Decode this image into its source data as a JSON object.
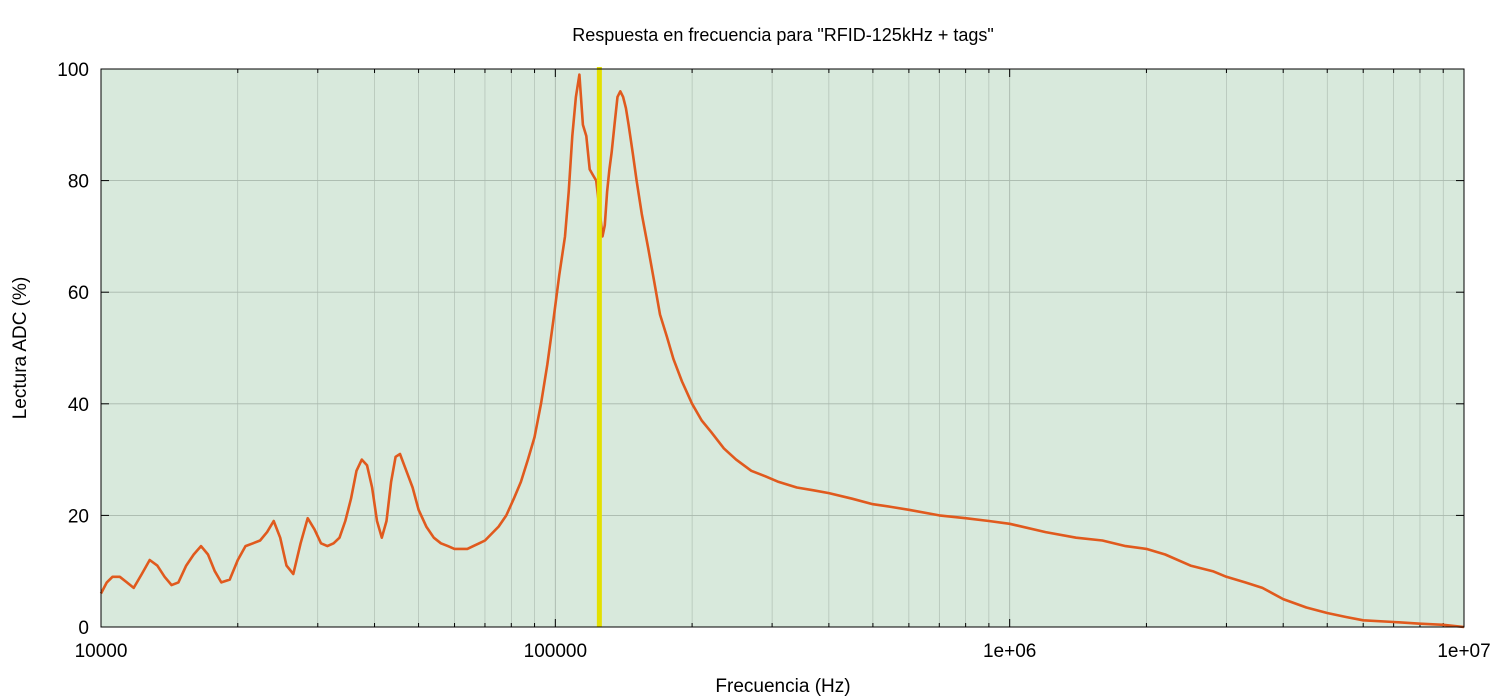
{
  "chart_data": {
    "type": "line",
    "title": "Respuesta en frecuencia para \"RFID-125kHz + tags\"",
    "xlabel": "Frecuencia (Hz)",
    "ylabel": "Lectura ADC (%)",
    "x_scale": "log",
    "xlim": [
      10000,
      10000000
    ],
    "ylim": [
      0,
      100
    ],
    "x_ticks": [
      {
        "value": 10000,
        "label": "10000"
      },
      {
        "value": 100000,
        "label": "100000"
      },
      {
        "value": 1000000,
        "label": "1e+06"
      },
      {
        "value": 10000000,
        "label": "1e+07"
      }
    ],
    "y_ticks": [
      0,
      20,
      40,
      60,
      80,
      100
    ],
    "grid": true,
    "legend": "none",
    "background_color": "#d8e9dc",
    "grid_color": "#a9b8ad",
    "series": [
      {
        "color": "#e05a1e",
        "x": [
          10000,
          10300,
          10600,
          11000,
          11400,
          11800,
          12300,
          12800,
          13300,
          13800,
          14300,
          14800,
          15400,
          16000,
          16600,
          17200,
          17800,
          18400,
          19200,
          20000,
          20800,
          21600,
          22400,
          23200,
          24000,
          24800,
          25600,
          26500,
          27500,
          28500,
          29500,
          30500,
          31500,
          32500,
          33500,
          34500,
          35500,
          36500,
          37500,
          38500,
          39500,
          40500,
          41500,
          42500,
          43500,
          44500,
          45500,
          46500,
          47500,
          48500,
          50000,
          52000,
          54000,
          56000,
          58000,
          60000,
          62000,
          64000,
          66000,
          68000,
          70000,
          72000,
          75000,
          78000,
          81000,
          84000,
          87000,
          90000,
          93000,
          96000,
          99000,
          102000,
          105000,
          107000,
          109000,
          111000,
          113000,
          115000,
          117000,
          119000,
          121000,
          123000,
          125000,
          127000,
          128500,
          130000,
          131500,
          133000,
          135000,
          137000,
          139000,
          141000,
          143000,
          145000,
          148000,
          151000,
          155000,
          160000,
          165000,
          170000,
          176000,
          182000,
          190000,
          200000,
          210000,
          220000,
          235000,
          250000,
          270000,
          290000,
          310000,
          340000,
          370000,
          400000,
          450000,
          500000,
          550000,
          600000,
          700000,
          800000,
          900000,
          1000000,
          1200000,
          1400000,
          1600000,
          1800000,
          2000000,
          2200000,
          2500000,
          2800000,
          3000000,
          3300000,
          3600000,
          4000000,
          4500000,
          5000000,
          5500000,
          6000000,
          7000000,
          8000000,
          9000000,
          10000000
        ],
        "y": [
          6,
          8,
          9,
          9,
          8,
          7,
          9.5,
          12,
          11,
          9,
          7.5,
          8,
          11,
          13,
          14.5,
          13,
          10,
          8,
          8.5,
          12,
          14.5,
          15,
          15.5,
          17,
          19,
          16,
          11,
          9.5,
          15,
          19.5,
          17.5,
          15,
          14.5,
          15,
          16,
          19,
          23,
          28,
          30,
          29,
          25,
          19,
          16,
          19,
          26,
          30.5,
          31,
          29,
          27,
          25,
          21,
          18,
          16,
          15,
          14.5,
          14,
          14,
          14,
          14.5,
          15,
          15.5,
          16.5,
          18,
          20,
          23,
          26,
          30,
          34,
          40,
          47,
          55,
          63,
          70,
          78,
          88,
          95,
          99,
          90,
          88,
          82,
          81,
          80,
          75,
          70,
          72,
          78,
          82,
          85,
          90,
          95,
          96,
          95,
          93,
          90,
          85,
          80,
          74,
          68,
          62,
          56,
          52,
          48,
          44,
          40,
          37,
          35,
          32,
          30,
          28,
          27,
          26,
          25,
          24.5,
          24,
          23,
          22,
          21.5,
          21,
          20,
          19.5,
          19,
          18.5,
          17,
          16,
          15.5,
          14.5,
          14,
          13,
          11,
          10,
          9,
          8,
          7,
          5,
          3.5,
          2.5,
          1.8,
          1.2,
          0.9,
          0.6,
          0.4,
          0
        ]
      }
    ],
    "vertical_marker": {
      "x": 125000,
      "color": "#e3e000"
    }
  }
}
